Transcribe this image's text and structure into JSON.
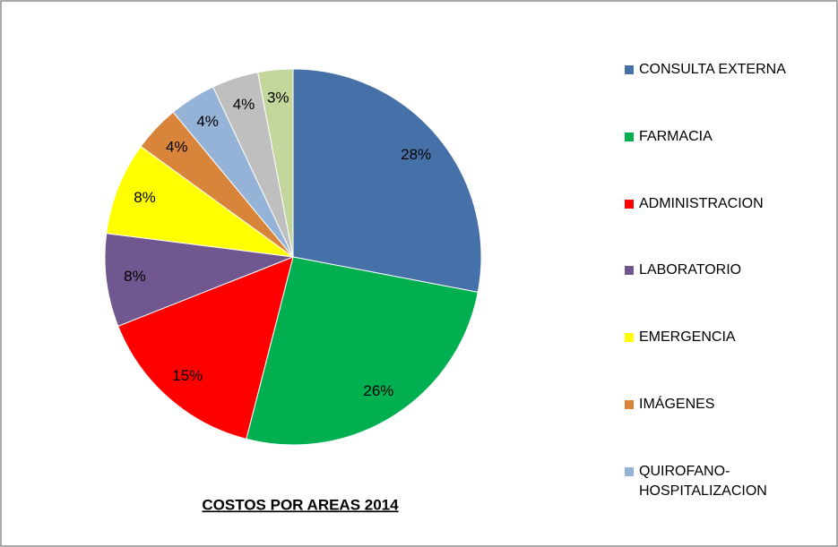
{
  "chart_data": {
    "type": "pie",
    "title": "COSTOS POR AREAS 2014",
    "categories": [
      "CONSULTA EXTERNA",
      "FARMACIA",
      "ADMINISTRACION",
      "LABORATORIO",
      "EMERGENCIA",
      "IMÁGENES",
      "QUIROFANO-HOSPITALIZACION",
      null,
      null
    ],
    "values": [
      28,
      26,
      15,
      8,
      8,
      4,
      4,
      4,
      3
    ],
    "value_labels": [
      "28%",
      "26%",
      "15%",
      "8%",
      "8%",
      "4%",
      "4%",
      "4%",
      "3%"
    ],
    "colors": [
      "#4671a8",
      "#00b050",
      "#ff0000",
      "#70578f",
      "#ffff00",
      "#d9843b",
      "#95b3d7",
      "#bfbfbf",
      "#c3d69b"
    ]
  }
}
